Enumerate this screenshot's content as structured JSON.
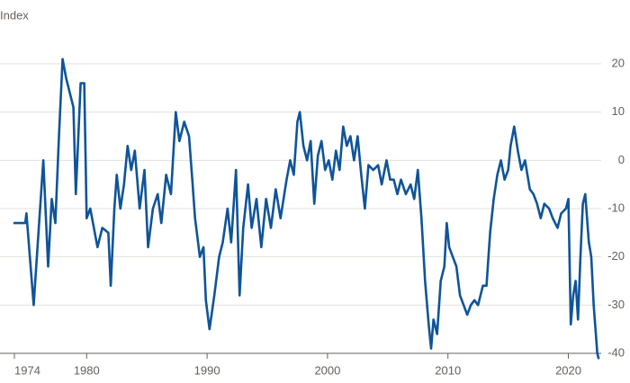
{
  "chart_data": {
    "type": "line",
    "title": "Index",
    "x": [
      1974.0,
      1974.9,
      1975.0,
      1975.6,
      1976.0,
      1976.4,
      1976.8,
      1977.1,
      1977.4,
      1977.7,
      1978.0,
      1978.3,
      1978.6,
      1978.9,
      1979.1,
      1979.5,
      1979.8,
      1980.0,
      1980.3,
      1980.9,
      1981.3,
      1981.8,
      1982.0,
      1982.3,
      1982.5,
      1982.8,
      1983.1,
      1983.4,
      1983.7,
      1984.0,
      1984.4,
      1984.8,
      1985.1,
      1985.5,
      1985.9,
      1986.2,
      1986.6,
      1987.0,
      1987.4,
      1987.7,
      1988.1,
      1988.5,
      1988.8,
      1989.0,
      1989.4,
      1989.7,
      1989.9,
      1990.2,
      1990.6,
      1991.0,
      1991.3,
      1991.7,
      1992.0,
      1992.4,
      1992.7,
      1993.0,
      1993.4,
      1993.7,
      1994.1,
      1994.5,
      1994.9,
      1995.3,
      1995.7,
      1996.1,
      1996.6,
      1996.9,
      1997.2,
      1997.5,
      1997.7,
      1998.0,
      1998.3,
      1998.6,
      1998.9,
      1999.2,
      1999.5,
      1999.8,
      2000.1,
      2000.4,
      2000.7,
      2001.0,
      2001.3,
      2001.6,
      2001.9,
      2002.2,
      2002.5,
      2002.8,
      2003.1,
      2003.4,
      2003.8,
      2004.2,
      2004.5,
      2004.9,
      2005.2,
      2005.5,
      2005.8,
      2006.1,
      2006.5,
      2006.9,
      2007.2,
      2007.5,
      2007.8,
      2008.1,
      2008.4,
      2008.6,
      2008.8,
      2009.1,
      2009.4,
      2009.7,
      2009.9,
      2010.1,
      2010.4,
      2010.7,
      2011.0,
      2011.3,
      2011.6,
      2011.9,
      2012.2,
      2012.5,
      2012.9,
      2013.2,
      2013.5,
      2013.8,
      2014.1,
      2014.4,
      2014.7,
      2015.0,
      2015.2,
      2015.5,
      2015.8,
      2016.1,
      2016.4,
      2016.6,
      2016.8,
      2017.1,
      2017.4,
      2017.7,
      2018.0,
      2018.4,
      2018.7,
      2019.1,
      2019.4,
      2019.8,
      2020.0,
      2020.2,
      2020.4,
      2020.6,
      2020.8,
      2021.0,
      2021.2,
      2021.4,
      2021.7,
      2021.9,
      2022.1,
      2022.4,
      2022.5
    ],
    "series": [
      {
        "name": "Index",
        "color": "#0f5499",
        "values": [
          -13,
          -13,
          -11,
          -30,
          -15,
          0,
          -22,
          -8,
          -13,
          5,
          21,
          17,
          14,
          11,
          -7,
          16,
          16,
          -12,
          -10,
          -18,
          -14,
          -15,
          -26,
          -10,
          -3,
          -10,
          -5,
          3,
          -2,
          2,
          -10,
          -2,
          -18,
          -10,
          -7,
          -13,
          -3,
          -7,
          10,
          4,
          8,
          5,
          -5,
          -12,
          -20,
          -18,
          -29,
          -35,
          -28,
          -20,
          -17,
          -10,
          -17,
          -2,
          -28,
          -14,
          -5,
          -14,
          -8,
          -18,
          -8,
          -14,
          -6,
          -12,
          -4,
          0,
          -3,
          8,
          10,
          3,
          0,
          4,
          -9,
          1,
          4,
          -2,
          0,
          -4,
          2,
          -2,
          7,
          3,
          5,
          0,
          5,
          -3,
          -10,
          -1,
          -2,
          -1,
          -5,
          0,
          -4,
          -4,
          -7,
          -4,
          -7,
          -5,
          -8,
          -2,
          -12,
          -25,
          -34,
          -39,
          -33,
          -36,
          -25,
          -22,
          -13,
          -18,
          -20,
          -22,
          -28,
          -30,
          -32,
          -30,
          -29,
          -30,
          -26,
          -26,
          -15,
          -8,
          -3,
          0,
          -4,
          -2,
          3,
          7,
          2,
          -2,
          0,
          -3,
          -6,
          -7,
          -9,
          -12,
          -9,
          -10,
          -12,
          -14,
          -11,
          -10,
          -8,
          -34,
          -28,
          -25,
          -33,
          -20,
          -9,
          -7,
          -17,
          -20,
          -30,
          -40,
          -41
        ]
      }
    ],
    "xlim": [
      1974,
      2022.5
    ],
    "xticks": [
      1974,
      1980,
      1990,
      2000,
      2010,
      2020
    ],
    "ylim": [
      -42,
      22
    ],
    "yticks": [
      20,
      10,
      0,
      -10,
      -20,
      -30,
      -40
    ],
    "grid": true
  }
}
